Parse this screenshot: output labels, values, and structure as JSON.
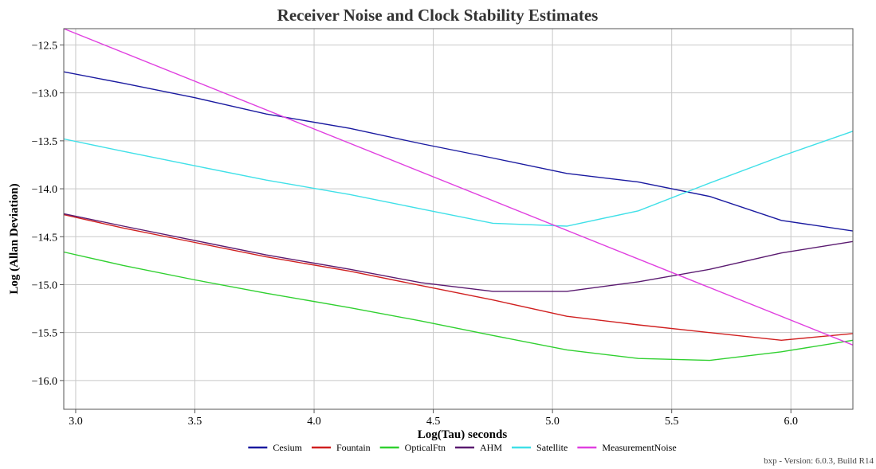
{
  "chart_data": {
    "type": "line",
    "title": "Receiver Noise and Clock Stability Estimates",
    "xlabel": "Log(Tau) seconds",
    "ylabel": "Log (Allan Deviation)",
    "xlim": [
      2.95,
      6.26
    ],
    "ylim": [
      -16.3,
      -12.33
    ],
    "xticks": [
      3.0,
      3.5,
      4.0,
      4.5,
      5.0,
      5.5,
      6.0
    ],
    "xtick_labels": [
      "3.0",
      "3.5",
      "4.0",
      "4.5",
      "5.0",
      "5.5",
      "6.0"
    ],
    "yticks": [
      -12.5,
      -13.0,
      -13.5,
      -14.0,
      -14.5,
      -15.0,
      -15.5,
      -16.0
    ],
    "ytick_labels": [
      "−12.5",
      "−13.0",
      "−13.5",
      "−14.0",
      "−14.5",
      "−15.0",
      "−15.5",
      "−16.0"
    ],
    "grid": true,
    "legend_position": "bottom",
    "series": [
      {
        "name": "Cesium",
        "color": "#1a1aa0",
        "x": [
          2.95,
          3.2,
          3.5,
          3.8,
          4.15,
          4.45,
          4.75,
          5.06,
          5.36,
          5.66,
          5.96,
          6.26
        ],
        "y": [
          -12.78,
          -12.9,
          -13.05,
          -13.22,
          -13.37,
          -13.53,
          -13.68,
          -13.84,
          -13.93,
          -14.08,
          -14.33,
          -14.44
        ]
      },
      {
        "name": "Fountain",
        "color": "#d02020",
        "x": [
          2.95,
          3.2,
          3.5,
          3.8,
          4.15,
          4.45,
          4.75,
          5.06,
          5.36,
          5.66,
          5.96,
          6.26
        ],
        "y": [
          -14.27,
          -14.41,
          -14.56,
          -14.71,
          -14.86,
          -15.01,
          -15.16,
          -15.33,
          -15.42,
          -15.5,
          -15.58,
          -15.51
        ]
      },
      {
        "name": "OpticalFtn",
        "color": "#30d030",
        "x": [
          2.95,
          3.2,
          3.5,
          3.8,
          4.15,
          4.45,
          4.75,
          5.06,
          5.36,
          5.66,
          5.96,
          6.26
        ],
        "y": [
          -14.66,
          -14.8,
          -14.95,
          -15.09,
          -15.24,
          -15.38,
          -15.53,
          -15.68,
          -15.77,
          -15.79,
          -15.7,
          -15.58
        ]
      },
      {
        "name": "AHM",
        "color": "#5a1a70",
        "x": [
          2.95,
          3.2,
          3.5,
          3.8,
          4.15,
          4.45,
          4.75,
          5.06,
          5.36,
          5.66,
          5.96,
          6.26
        ],
        "y": [
          -14.26,
          -14.39,
          -14.54,
          -14.69,
          -14.84,
          -14.98,
          -15.07,
          -15.07,
          -14.97,
          -14.84,
          -14.67,
          -14.55
        ]
      },
      {
        "name": "Satellite",
        "color": "#40e0e8",
        "x": [
          2.95,
          3.2,
          3.5,
          3.8,
          4.15,
          4.45,
          4.75,
          5.06,
          5.36,
          5.66,
          5.96,
          6.26
        ],
        "y": [
          -13.48,
          -13.61,
          -13.76,
          -13.91,
          -14.06,
          -14.21,
          -14.36,
          -14.39,
          -14.23,
          -13.94,
          -13.66,
          -13.4
        ]
      },
      {
        "name": "MeasurementNoise",
        "color": "#e040e0",
        "x": [
          2.95,
          6.26
        ],
        "y": [
          -12.33,
          -15.63
        ]
      }
    ]
  },
  "footer": {
    "version_text": "bxp - Version: 6.0.3, Build R14"
  }
}
